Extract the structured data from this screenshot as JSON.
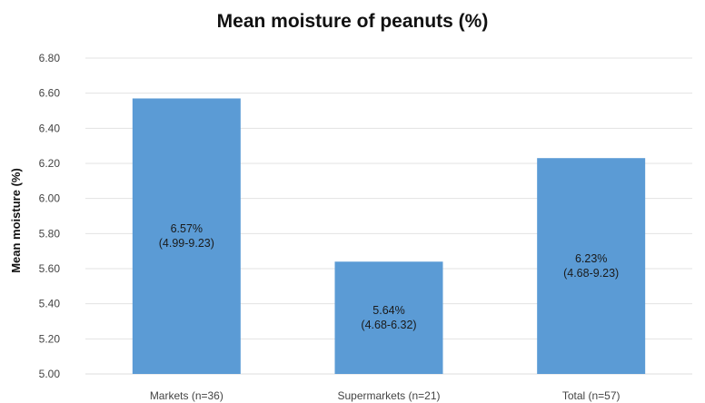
{
  "chart_data": {
    "type": "bar",
    "title": "Mean moisture of peanuts (%)",
    "ylabel": "Mean moisture (%)",
    "xlabel": "",
    "categories": [
      "Markets (n=36)",
      "Supermarkets (n=21)",
      "Total (n=57)"
    ],
    "values": [
      6.57,
      5.64,
      6.23
    ],
    "data_labels": [
      [
        "6.57%",
        "(4.99-9.23)"
      ],
      [
        "5.64%",
        "(4.68-6.32)"
      ],
      [
        "6.23%",
        "(4.68-9.23)"
      ]
    ],
    "yticks": [
      "5.00",
      "5.20",
      "5.40",
      "5.60",
      "5.80",
      "6.00",
      "6.20",
      "6.40",
      "6.60",
      "6.80"
    ],
    "ylim": [
      5.0,
      6.8
    ],
    "grid": true,
    "legend": "none",
    "bar_color": "#5b9bd5",
    "grid_color": "#e3e3e3"
  }
}
